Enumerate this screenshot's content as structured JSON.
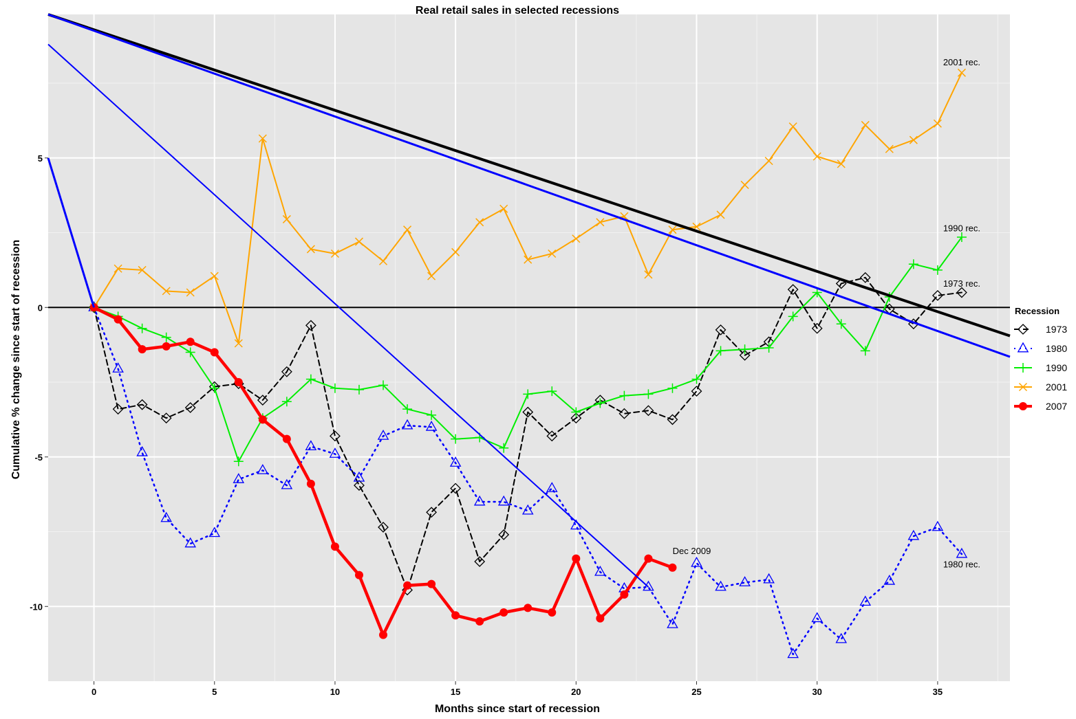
{
  "chart_data": {
    "type": "line",
    "title": "Real retail sales in selected recessions",
    "xlabel": "Months since start of recession",
    "ylabel": "Cumulative % change since start of recession",
    "xlim": [
      -1.9,
      38.0
    ],
    "ylim": [
      -12.5,
      9.8
    ],
    "x_ticks": [
      0,
      5,
      10,
      15,
      20,
      25,
      30,
      35
    ],
    "y_ticks": [
      -10,
      -5,
      0,
      5
    ],
    "grid": true,
    "legend": {
      "title": "Recession",
      "position": "right"
    },
    "series": [
      {
        "name": "1973",
        "color": "#000000",
        "dash": "dashed",
        "marker": "diamond",
        "x": [
          0,
          1,
          2,
          3,
          4,
          5,
          6,
          7,
          8,
          9,
          10,
          11,
          12,
          13,
          14,
          15,
          16,
          17,
          18,
          19,
          20,
          21,
          22,
          23,
          24,
          25,
          26,
          27,
          28,
          29,
          30,
          31,
          32,
          33,
          34,
          35,
          36
        ],
        "y": [
          0,
          -3.4,
          -3.25,
          -3.7,
          -3.35,
          -2.65,
          -2.55,
          -3.1,
          -2.15,
          -0.6,
          -4.3,
          -5.95,
          -7.35,
          -9.45,
          -6.85,
          -6.05,
          -8.5,
          -7.6,
          -3.5,
          -4.3,
          -3.7,
          -3.1,
          -3.55,
          -3.45,
          -3.75,
          -2.8,
          -0.75,
          -1.6,
          -1.15,
          0.6,
          -0.7,
          0.8,
          1.0,
          -0.05,
          -0.55,
          0.4,
          0.5
        ]
      },
      {
        "name": "1980",
        "color": "#0000ff",
        "dash": "dotted",
        "marker": "triangle",
        "x": [
          0,
          1,
          2,
          3,
          4,
          5,
          6,
          7,
          8,
          9,
          10,
          11,
          12,
          13,
          14,
          15,
          16,
          17,
          18,
          19,
          20,
          21,
          22,
          23,
          24,
          25,
          26,
          27,
          28,
          29,
          30,
          31,
          32,
          33,
          34,
          35,
          36
        ],
        "y": [
          0,
          -2.05,
          -4.85,
          -7.05,
          -7.9,
          -7.55,
          -5.75,
          -5.45,
          -5.95,
          -4.65,
          -4.9,
          -5.7,
          -4.3,
          -3.95,
          -4.0,
          -5.2,
          -6.5,
          -6.5,
          -6.8,
          -6.05,
          -7.3,
          -8.85,
          -9.4,
          -9.35,
          -10.6,
          -8.55,
          -9.35,
          -9.2,
          -9.1,
          -11.6,
          -10.4,
          -11.1,
          -9.85,
          -9.15,
          -7.65,
          -7.35,
          -8.25
        ]
      },
      {
        "name": "1990",
        "color": "#00ee00",
        "dash": "solid",
        "marker": "plus",
        "x": [
          0,
          1,
          2,
          3,
          4,
          5,
          6,
          7,
          8,
          9,
          10,
          11,
          12,
          13,
          14,
          15,
          16,
          17,
          18,
          19,
          20,
          21,
          22,
          23,
          24,
          25,
          26,
          27,
          28,
          29,
          30,
          31,
          32,
          33,
          34,
          35,
          36
        ],
        "y": [
          0,
          -0.3,
          -0.7,
          -1.0,
          -1.5,
          -2.7,
          -5.15,
          -3.7,
          -3.15,
          -2.4,
          -2.7,
          -2.75,
          -2.6,
          -3.4,
          -3.6,
          -4.4,
          -4.35,
          -4.7,
          -2.9,
          -2.8,
          -3.5,
          -3.2,
          -2.95,
          -2.9,
          -2.7,
          -2.4,
          -1.45,
          -1.4,
          -1.35,
          -0.3,
          0.5,
          -0.55,
          -1.45,
          0.35,
          1.45,
          1.25,
          2.35
        ]
      },
      {
        "name": "2001",
        "color": "#ffa500",
        "dash": "solid",
        "marker": "x",
        "x": [
          0,
          1,
          2,
          3,
          4,
          5,
          6,
          7,
          8,
          9,
          10,
          11,
          12,
          13,
          14,
          15,
          16,
          17,
          18,
          19,
          20,
          21,
          22,
          23,
          24,
          25,
          26,
          27,
          28,
          29,
          30,
          31,
          32,
          33,
          34,
          35,
          36
        ],
        "y": [
          0,
          1.3,
          1.25,
          0.55,
          0.5,
          1.05,
          -1.2,
          5.65,
          2.95,
          1.95,
          1.8,
          2.2,
          1.55,
          2.6,
          1.05,
          1.85,
          2.85,
          3.3,
          1.6,
          1.8,
          2.3,
          2.85,
          3.05,
          1.1,
          2.6,
          2.7,
          3.1,
          4.1,
          4.9,
          6.05,
          5.05,
          4.8,
          6.1,
          5.3,
          5.6,
          6.15,
          7.85
        ]
      },
      {
        "name": "2007",
        "color": "#ff0000",
        "dash": "solid",
        "marker": "circle",
        "x": [
          0,
          1,
          2,
          3,
          4,
          5,
          6,
          7,
          8,
          9,
          10,
          11,
          12,
          13,
          14,
          15,
          16,
          17,
          18,
          19,
          20,
          21,
          22,
          23,
          24
        ],
        "y": [
          0,
          -0.4,
          -1.4,
          -1.3,
          -1.15,
          -1.5,
          -2.5,
          -3.75,
          -4.4,
          -5.9,
          -8.0,
          -8.95,
          -10.95,
          -9.3,
          -9.25,
          -10.3,
          -10.5,
          -10.2,
          -10.05,
          -10.2,
          -8.4,
          -10.4,
          -9.6,
          -8.4,
          -8.7
        ]
      }
    ],
    "trend_lines": [
      {
        "color": "#000000",
        "width": 4,
        "from": [
          -1.9,
          9.8
        ],
        "to": [
          38.0,
          -0.95
        ]
      },
      {
        "color": "#0000ff",
        "width": 3,
        "from": [
          -1.9,
          9.8
        ],
        "to": [
          38.0,
          -1.65
        ]
      },
      {
        "color": "#0000ff",
        "width": 2,
        "from": [
          -1.9,
          8.8
        ],
        "to": [
          23.0,
          -9.35
        ]
      },
      {
        "color": "#0000ff",
        "width": 3,
        "from": [
          -1.9,
          5.0
        ],
        "to": [
          0,
          0
        ]
      }
    ],
    "annotations": [
      {
        "text": "2001 rec.",
        "x": 36.0,
        "y": 8.1
      },
      {
        "text": "1990 rec.",
        "x": 36.0,
        "y": 2.55
      },
      {
        "text": "1973 rec.",
        "x": 36.0,
        "y": 0.7
      },
      {
        "text": "1980 rec.",
        "x": 36.0,
        "y": -8.7
      },
      {
        "text": "Dec 2009",
        "x": 24.8,
        "y": -8.25
      }
    ]
  }
}
